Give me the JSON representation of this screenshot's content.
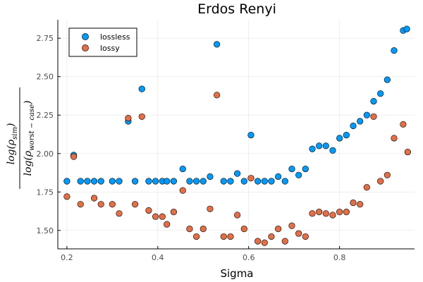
{
  "chart_data": {
    "type": "scatter",
    "title": "Erdos Renyi",
    "xlabel": "Sigma",
    "ylabel": {
      "numerator": "log(ρ",
      "numerator_sub": "sim",
      "denominator": "log(ρ",
      "denominator_sub": "worst − case",
      "close": ")"
    },
    "xlim": [
      0.18,
      0.965
    ],
    "ylim": [
      1.38,
      2.87
    ],
    "xticks": [
      0.2,
      0.4,
      0.6,
      0.8
    ],
    "xtick_labels": [
      "0.2",
      "0.4",
      "0.6",
      "0.8"
    ],
    "yticks": [
      1.5,
      1.75,
      2.0,
      2.25,
      2.5,
      2.75
    ],
    "ytick_labels": [
      "1.50",
      "1.75",
      "2.00",
      "2.25",
      "2.50",
      "2.75"
    ],
    "grid": true,
    "legend_position": "top-left",
    "series": [
      {
        "name": "lossless",
        "color": "#009af9",
        "points": [
          [
            0.2,
            1.82
          ],
          [
            0.215,
            1.99
          ],
          [
            0.23,
            1.82
          ],
          [
            0.245,
            1.82
          ],
          [
            0.26,
            1.82
          ],
          [
            0.275,
            1.82
          ],
          [
            0.3,
            1.82
          ],
          [
            0.315,
            1.82
          ],
          [
            0.335,
            2.21
          ],
          [
            0.35,
            1.82
          ],
          [
            0.365,
            2.42
          ],
          [
            0.38,
            1.82
          ],
          [
            0.395,
            1.82
          ],
          [
            0.41,
            1.82
          ],
          [
            0.42,
            1.82
          ],
          [
            0.435,
            1.82
          ],
          [
            0.455,
            1.9
          ],
          [
            0.47,
            1.82
          ],
          [
            0.485,
            1.82
          ],
          [
            0.5,
            1.82
          ],
          [
            0.515,
            1.85
          ],
          [
            0.53,
            2.71
          ],
          [
            0.545,
            1.82
          ],
          [
            0.56,
            1.82
          ],
          [
            0.575,
            1.87
          ],
          [
            0.59,
            1.82
          ],
          [
            0.605,
            2.12
          ],
          [
            0.62,
            1.82
          ],
          [
            0.635,
            1.82
          ],
          [
            0.65,
            1.82
          ],
          [
            0.665,
            1.85
          ],
          [
            0.68,
            1.82
          ],
          [
            0.695,
            1.9
          ],
          [
            0.71,
            1.86
          ],
          [
            0.725,
            1.9
          ],
          [
            0.74,
            2.03
          ],
          [
            0.755,
            2.05
          ],
          [
            0.77,
            2.05
          ],
          [
            0.785,
            2.02
          ],
          [
            0.8,
            2.1
          ],
          [
            0.815,
            2.12
          ],
          [
            0.83,
            2.18
          ],
          [
            0.845,
            2.21
          ],
          [
            0.86,
            2.25
          ],
          [
            0.875,
            2.34
          ],
          [
            0.89,
            2.39
          ],
          [
            0.905,
            2.48
          ],
          [
            0.92,
            2.67
          ],
          [
            0.94,
            2.8
          ],
          [
            0.948,
            2.81
          ]
        ]
      },
      {
        "name": "lossy",
        "color": "#e26f46",
        "points": [
          [
            0.2,
            1.72
          ],
          [
            0.215,
            1.98
          ],
          [
            0.23,
            1.67
          ],
          [
            0.26,
            1.71
          ],
          [
            0.275,
            1.67
          ],
          [
            0.3,
            1.67
          ],
          [
            0.315,
            1.61
          ],
          [
            0.335,
            2.23
          ],
          [
            0.35,
            1.67
          ],
          [
            0.365,
            2.24
          ],
          [
            0.38,
            1.63
          ],
          [
            0.395,
            1.59
          ],
          [
            0.41,
            1.59
          ],
          [
            0.42,
            1.54
          ],
          [
            0.435,
            1.62
          ],
          [
            0.455,
            1.76
          ],
          [
            0.47,
            1.51
          ],
          [
            0.485,
            1.46
          ],
          [
            0.5,
            1.51
          ],
          [
            0.515,
            1.64
          ],
          [
            0.53,
            2.38
          ],
          [
            0.545,
            1.46
          ],
          [
            0.56,
            1.46
          ],
          [
            0.575,
            1.6
          ],
          [
            0.59,
            1.51
          ],
          [
            0.605,
            1.84
          ],
          [
            0.62,
            1.43
          ],
          [
            0.635,
            1.42
          ],
          [
            0.65,
            1.46
          ],
          [
            0.665,
            1.51
          ],
          [
            0.68,
            1.43
          ],
          [
            0.695,
            1.53
          ],
          [
            0.71,
            1.48
          ],
          [
            0.725,
            1.46
          ],
          [
            0.74,
            1.61
          ],
          [
            0.755,
            1.62
          ],
          [
            0.77,
            1.61
          ],
          [
            0.785,
            1.6
          ],
          [
            0.8,
            1.62
          ],
          [
            0.815,
            1.62
          ],
          [
            0.83,
            1.68
          ],
          [
            0.845,
            1.67
          ],
          [
            0.86,
            1.78
          ],
          [
            0.875,
            2.24
          ],
          [
            0.89,
            1.82
          ],
          [
            0.905,
            1.86
          ],
          [
            0.92,
            2.1
          ],
          [
            0.94,
            2.19
          ],
          [
            0.95,
            2.01
          ]
        ]
      }
    ]
  }
}
